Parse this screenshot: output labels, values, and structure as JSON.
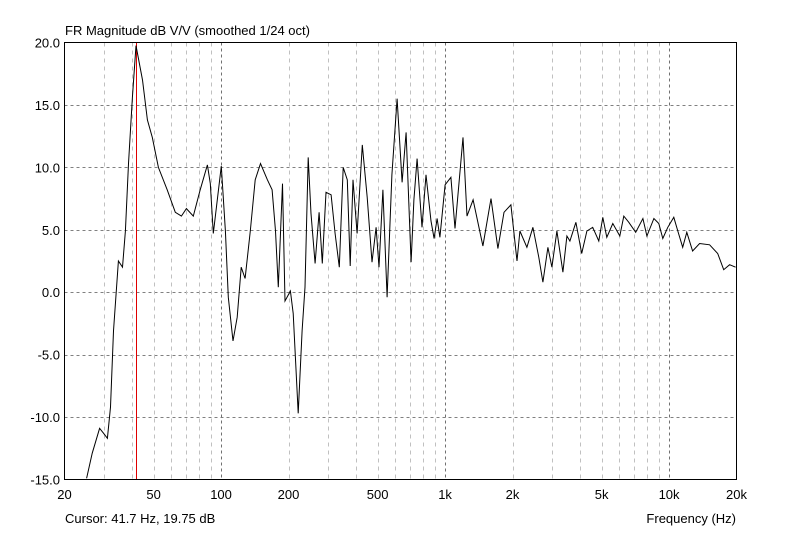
{
  "chart_data": {
    "type": "line",
    "title": "FR Magnitude dB V/V (smoothed 1/24 oct)",
    "xlabel": "Frequency (Hz)",
    "ylabel": "",
    "xscale": "log",
    "xlim": [
      20,
      20000
    ],
    "ylim": [
      -15,
      20
    ],
    "grid": true,
    "x_ticks": [
      20,
      50,
      100,
      200,
      500,
      1000,
      2000,
      5000,
      10000,
      20000
    ],
    "x_tick_labels": [
      "20",
      "50",
      "100",
      "200",
      "500",
      "1k",
      "2k",
      "5k",
      "10k",
      "20k"
    ],
    "y_ticks": [
      20,
      15,
      10,
      5,
      0,
      -5,
      -10,
      -15
    ],
    "y_tick_labels": [
      "20.0",
      "15.0",
      "10.0",
      "5.0",
      "0.0",
      "-5.0",
      "-10.0",
      "-15.0"
    ],
    "line_color": "#000000",
    "cursor_color": "#e00000",
    "cursor": {
      "freq": 41.7,
      "db": 19.75,
      "label": "Cursor: 41.7 Hz, 19.75 dB"
    },
    "series": [
      {
        "x": [
          25.1,
          26.6,
          28.7,
          29.9,
          31.1,
          32.1,
          33.1,
          34.8,
          36.3,
          37.4,
          38.6,
          40.2,
          41.7,
          44.6,
          46.9,
          49.3,
          52.5,
          57.5,
          62.5,
          66.5,
          70,
          75.2,
          80.7,
          86.9,
          89.5,
          92.3,
          96.2,
          100.2,
          104.5,
          107.7,
          113,
          118,
          123,
          128,
          135,
          142,
          150,
          161,
          169,
          175,
          180,
          188,
          193,
          204,
          210,
          221,
          230,
          237,
          245,
          252,
          263,
          274,
          283,
          294,
          310,
          323,
          337,
          351,
          366,
          377,
          388,
          405,
          427,
          449,
          472,
          492,
          507,
          528,
          551,
          579,
          611,
          643,
          670,
          705,
          726,
          750,
          789,
          822,
          865,
          893,
          921,
          948,
          1000,
          1062,
          1107,
          1202,
          1253,
          1334,
          1476,
          1603,
          1722,
          1832,
          1968,
          2094,
          2158,
          2318,
          2466,
          2622,
          2734,
          2878,
          2998,
          3156,
          3358,
          3500,
          3608,
          3838,
          4074,
          4296,
          4560,
          4854,
          5058,
          5272,
          5610,
          6026,
          6282,
          6608,
          7096,
          7638,
          7962,
          8552,
          8996,
          9376,
          9866,
          10496,
          10940,
          11508,
          11996,
          12736,
          13680,
          15172,
          16482,
          17540,
          18622,
          19816
        ],
        "y": [
          -14.9,
          -12.9,
          -10.9,
          -11.3,
          -11.7,
          -9.2,
          -3.1,
          2.5,
          2.0,
          4.9,
          10.3,
          15.6,
          19.75,
          17.0,
          13.8,
          12.4,
          10.0,
          8.2,
          6.4,
          6.1,
          6.7,
          6.1,
          8.2,
          10.2,
          8.7,
          4.7,
          7.4,
          10.1,
          4.9,
          -0.4,
          -3.9,
          -2.0,
          2.0,
          1.1,
          4.9,
          9.0,
          10.3,
          9.0,
          8.2,
          4.9,
          0.4,
          8.7,
          -0.7,
          0.1,
          -1.7,
          -9.7,
          -3.1,
          0.4,
          10.8,
          6.3,
          2.3,
          6.4,
          2.3,
          8.0,
          7.8,
          4.7,
          2.0,
          10.0,
          9.0,
          2.1,
          9.0,
          4.7,
          11.8,
          7.6,
          2.4,
          5.2,
          2.0,
          8.2,
          -0.4,
          9.4,
          15.5,
          8.8,
          12.8,
          2.4,
          7.4,
          10.7,
          5.2,
          9.4,
          5.7,
          4.3,
          5.9,
          4.4,
          8.6,
          9.2,
          5.1,
          12.4,
          6.1,
          7.4,
          3.7,
          7.5,
          3.5,
          6.4,
          7.0,
          2.5,
          4.9,
          3.6,
          5.2,
          2.8,
          0.8,
          3.6,
          2.0,
          4.9,
          1.6,
          4.5,
          4.1,
          5.6,
          3.1,
          4.9,
          5.2,
          4.1,
          6.0,
          4.4,
          5.5,
          4.5,
          6.1,
          5.6,
          4.8,
          5.9,
          4.5,
          5.9,
          5.5,
          4.3,
          5.2,
          6.0,
          4.9,
          3.6,
          4.8,
          3.3,
          3.9,
          3.8,
          3.1,
          1.8,
          2.2,
          2.0
        ]
      }
    ]
  }
}
